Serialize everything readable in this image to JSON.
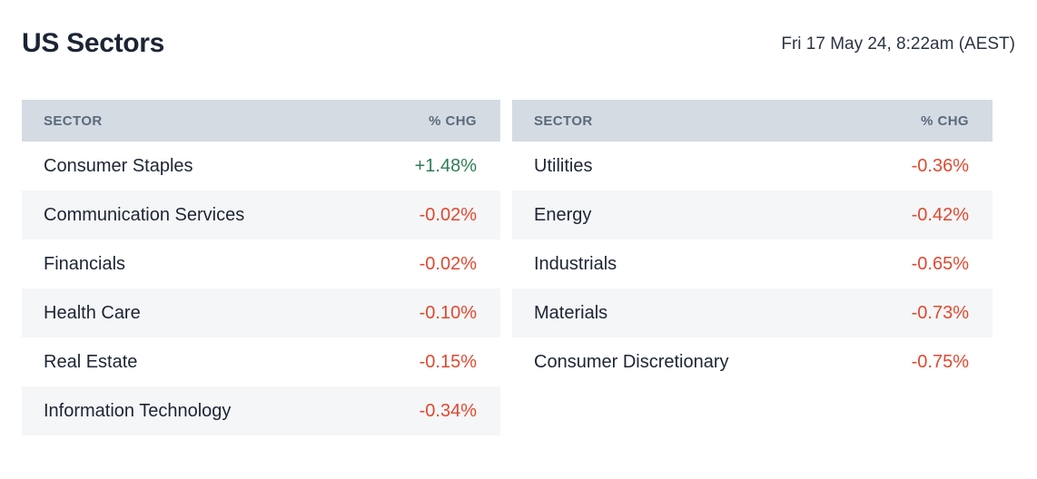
{
  "header": {
    "title": "US Sectors",
    "timestamp": "Fri 17 May 24, 8:22am (AEST)"
  },
  "colors": {
    "positive": "#2e7d52",
    "negative": "#df4930",
    "table_header_bg": "#d4dbe2",
    "table_header_text": "#5a6a7c",
    "row_stripe_bg": "#f5f6f7",
    "title_text": "#1c2434"
  },
  "chart_data": {
    "type": "table",
    "title": "US Sectors",
    "tables": [
      {
        "columns": {
          "sector": "SECTOR",
          "chg": "% CHG"
        },
        "rows": [
          {
            "sector": "Consumer Staples",
            "chg": "+1.48%",
            "direction": "positive"
          },
          {
            "sector": "Communication Services",
            "chg": "-0.02%",
            "direction": "negative"
          },
          {
            "sector": "Financials",
            "chg": "-0.02%",
            "direction": "negative"
          },
          {
            "sector": "Health Care",
            "chg": "-0.10%",
            "direction": "negative"
          },
          {
            "sector": "Real Estate",
            "chg": "-0.15%",
            "direction": "negative"
          },
          {
            "sector": "Information Technology",
            "chg": "-0.34%",
            "direction": "negative"
          }
        ]
      },
      {
        "columns": {
          "sector": "SECTOR",
          "chg": "% CHG"
        },
        "rows": [
          {
            "sector": "Utilities",
            "chg": "-0.36%",
            "direction": "negative"
          },
          {
            "sector": "Energy",
            "chg": "-0.42%",
            "direction": "negative"
          },
          {
            "sector": "Industrials",
            "chg": "-0.65%",
            "direction": "negative"
          },
          {
            "sector": "Materials",
            "chg": "-0.73%",
            "direction": "negative"
          },
          {
            "sector": "Consumer Discretionary",
            "chg": "-0.75%",
            "direction": "negative"
          }
        ]
      }
    ]
  }
}
